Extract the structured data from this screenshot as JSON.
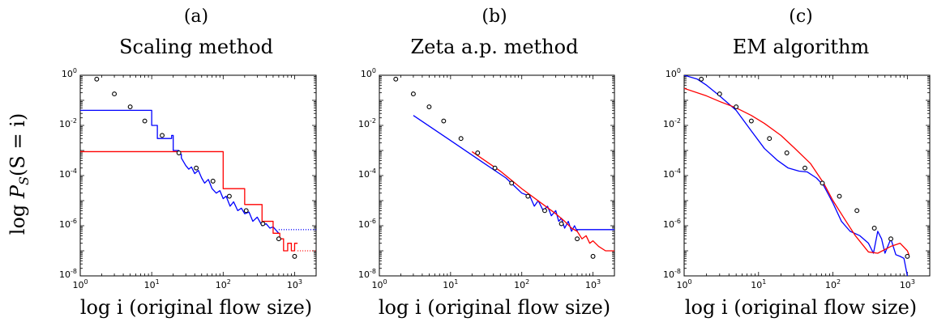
{
  "figure": {
    "ylabel_prefix": "log ",
    "ylabel_P": "P",
    "ylabel_sub": "S",
    "ylabel_rest": "(S = i)"
  },
  "chart_data": [
    {
      "type": "line",
      "panel_label": "(a)",
      "title": "Scaling method",
      "xlabel": "log i (original flow size)",
      "xscale": "log",
      "yscale": "log",
      "xlim": [
        1,
        2000
      ],
      "ylim": [
        1e-08,
        1
      ],
      "x_ticks": [
        1,
        10,
        100,
        1000
      ],
      "x_tick_labels": [
        [
          "10",
          "0"
        ],
        [
          "10",
          "1"
        ],
        [
          "10",
          "2"
        ],
        [
          "10",
          "3"
        ]
      ],
      "y_ticks": [
        1e-08,
        1e-06,
        0.0001,
        0.01,
        1
      ],
      "y_tick_labels": [
        [
          "10",
          "-8"
        ],
        [
          "10",
          "-6"
        ],
        [
          "10",
          "-4"
        ],
        [
          "10",
          "-2"
        ],
        [
          "10",
          "0"
        ]
      ],
      "grid": false,
      "markers": {
        "x": [
          1.7,
          3,
          5,
          8,
          14,
          24,
          42,
          72,
          122,
          210,
          360,
          600,
          1000
        ],
        "y": [
          0.7,
          0.18,
          0.055,
          0.015,
          0.004,
          0.0008,
          0.0002,
          6e-05,
          1.5e-05,
          4e-06,
          1.2e-06,
          3e-07,
          6e-08
        ]
      },
      "series": [
        {
          "color": "#0000ff",
          "x": [
            1,
            10,
            10,
            12,
            12,
            19,
            19,
            20,
            20,
            24,
            24,
            26,
            26,
            30,
            33,
            36,
            40,
            45,
            50,
            55,
            62,
            70,
            80,
            90,
            100,
            110,
            125,
            140,
            160,
            180,
            200,
            230,
            260,
            300,
            350,
            400,
            450,
            500,
            600
          ],
          "y": [
            0.04,
            0.04,
            0.01,
            0.01,
            0.003,
            0.003,
            0.004,
            0.004,
            0.001,
            0.001,
            0.0007,
            0.0007,
            0.0005,
            0.00025,
            0.00018,
            0.00022,
            0.00012,
            0.00016,
            8e-05,
            5e-05,
            7e-05,
            3e-05,
            2e-05,
            2.5e-05,
            1.2e-05,
            1.5e-05,
            6e-06,
            9e-06,
            4e-06,
            5e-06,
            3e-06,
            3.5e-06,
            1.5e-06,
            2.2e-06,
            1e-06,
            1.2e-06,
            8e-07,
            9e-07,
            5e-07
          ]
        },
        {
          "color": "#ff0000",
          "x": [
            1,
            100,
            100,
            200,
            200,
            350,
            350,
            500,
            500,
            620,
            620,
            700,
            700,
            800,
            800,
            900,
            900,
            1000,
            1000,
            1100
          ],
          "y": [
            0.0009,
            0.0009,
            3e-05,
            3e-05,
            7e-06,
            7e-06,
            1.5e-06,
            1.5e-06,
            5e-07,
            5e-07,
            3e-07,
            3e-07,
            1e-07,
            1e-07,
            2e-07,
            2e-07,
            1e-07,
            1e-07,
            2e-07,
            2e-07
          ]
        },
        {
          "color": "#0000ff",
          "style": "dotted",
          "x": [
            600,
            2000
          ],
          "y": [
            7e-07,
            7e-07
          ]
        },
        {
          "color": "#ff0000",
          "style": "dotted",
          "x": [
            1100,
            2000
          ],
          "y": [
            1e-07,
            1e-07
          ]
        }
      ]
    },
    {
      "type": "line",
      "panel_label": "(b)",
      "title": "Zeta a.p. method",
      "xlabel": "log i (original flow size)",
      "xscale": "log",
      "yscale": "log",
      "xlim": [
        1,
        2000
      ],
      "ylim": [
        1e-08,
        1
      ],
      "x_ticks": [
        1,
        10,
        100,
        1000
      ],
      "x_tick_labels": [
        [
          "10",
          "0"
        ],
        [
          "10",
          "1"
        ],
        [
          "10",
          "2"
        ],
        [
          "10",
          "3"
        ]
      ],
      "y_ticks": [
        1e-08,
        1e-06,
        0.0001,
        0.01,
        1
      ],
      "y_tick_labels": [
        [
          "10",
          "-8"
        ],
        [
          "10",
          "-6"
        ],
        [
          "10",
          "-4"
        ],
        [
          "10",
          "-2"
        ],
        [
          "10",
          "0"
        ]
      ],
      "grid": false,
      "markers": {
        "x": [
          1.7,
          3,
          5,
          8,
          14,
          24,
          42,
          72,
          122,
          210,
          360,
          600,
          1000
        ],
        "y": [
          0.7,
          0.18,
          0.055,
          0.015,
          0.003,
          0.0008,
          0.0002,
          5e-05,
          1.5e-05,
          4e-06,
          1.2e-06,
          3e-07,
          6e-08
        ]
      },
      "series": [
        {
          "color": "#0000ff",
          "x": [
            3,
            10,
            30,
            60,
            100,
            130,
            150,
            170,
            200,
            230,
            260,
            300,
            330,
            360,
            400,
            450,
            500,
            550,
            600,
            600,
            2000
          ],
          "y": [
            0.025,
            0.0025,
            0.0003,
            8e-05,
            2e-05,
            1.5e-05,
            6e-06,
            1e-05,
            4e-06,
            6e-06,
            2.5e-06,
            4e-06,
            1.5e-06,
            2e-06,
            8e-07,
            1.5e-06,
            6e-07,
            1e-06,
            6e-07,
            7e-07,
            7e-07
          ]
        },
        {
          "color": "#ff0000",
          "x": [
            20,
            50,
            100,
            200,
            300,
            400,
            500,
            600,
            700,
            800,
            900,
            1000,
            1200,
            1500,
            2000
          ],
          "y": [
            0.0009,
            0.00015,
            3e-05,
            7e-06,
            3e-06,
            1.5e-06,
            8e-07,
            6e-07,
            3e-07,
            4e-07,
            2e-07,
            2.5e-07,
            1.5e-07,
            1e-07,
            1e-07
          ]
        }
      ]
    },
    {
      "type": "line",
      "panel_label": "(c)",
      "title": "EM algorithm",
      "xlabel": "log i (original flow size)",
      "xscale": "log",
      "yscale": "log",
      "xlim": [
        1,
        2000
      ],
      "ylim": [
        1e-08,
        1
      ],
      "x_ticks": [
        1,
        10,
        100,
        1000
      ],
      "x_tick_labels": [
        [
          "10",
          "0"
        ],
        [
          "10",
          "1"
        ],
        [
          "10",
          "2"
        ],
        [
          "10",
          "3"
        ]
      ],
      "y_ticks": [
        1e-08,
        1e-06,
        0.0001,
        0.01,
        1
      ],
      "y_tick_labels": [
        [
          "10",
          "-8"
        ],
        [
          "10",
          "-6"
        ],
        [
          "10",
          "-4"
        ],
        [
          "10",
          "-2"
        ],
        [
          "10",
          "0"
        ]
      ],
      "grid": false,
      "markers": {
        "x": [
          1.7,
          3,
          5,
          8,
          14,
          24,
          42,
          72,
          122,
          210,
          360,
          600,
          1000
        ],
        "y": [
          0.7,
          0.18,
          0.055,
          0.015,
          0.003,
          0.0008,
          0.0002,
          5e-05,
          1.5e-05,
          4e-06,
          8e-07,
          3e-07,
          6e-08
        ]
      },
      "series": [
        {
          "color": "#0000ff",
          "x": [
            1,
            1.5,
            2,
            3,
            5,
            8,
            12,
            18,
            25,
            35,
            45,
            60,
            75,
            100,
            130,
            170,
            230,
            300,
            350,
            400,
            450,
            500,
            600,
            700,
            800,
            900,
            1000,
            1050
          ],
          "y": [
            1,
            0.7,
            0.4,
            0.15,
            0.04,
            0.006,
            0.0012,
            0.0004,
            0.0002,
            0.00015,
            0.00014,
            8e-05,
            4e-05,
            8e-06,
            1.5e-06,
            6e-07,
            4e-07,
            2e-07,
            8e-08,
            6e-07,
            3e-07,
            8e-08,
            3e-07,
            7e-08,
            6e-08,
            5e-08,
            1e-08,
            8e-09
          ]
        },
        {
          "color": "#ff0000",
          "x": [
            1,
            2,
            3,
            5,
            8,
            12,
            20,
            30,
            50,
            75,
            100,
            150,
            200,
            300,
            400,
            600,
            800,
            1000,
            1050
          ],
          "y": [
            0.3,
            0.15,
            0.09,
            0.05,
            0.025,
            0.012,
            0.004,
            0.0013,
            0.0003,
            5e-05,
            1e-05,
            1.5e-06,
            4e-07,
            9e-08,
            8e-08,
            1.5e-07,
            2e-07,
            1e-07,
            7e-08
          ]
        }
      ]
    }
  ]
}
